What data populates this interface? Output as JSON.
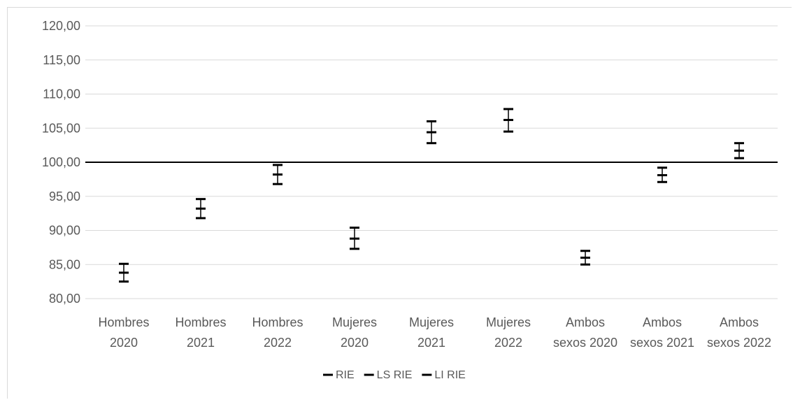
{
  "chart_data": {
    "type": "error-bar",
    "categories": [
      [
        "Hombres",
        "2020"
      ],
      [
        "Hombres",
        "2021"
      ],
      [
        "Hombres",
        "2022"
      ],
      [
        "Mujeres",
        "2020"
      ],
      [
        "Mujeres",
        "2021"
      ],
      [
        "Mujeres",
        "2022"
      ],
      [
        "Ambos",
        "sexos 2020"
      ],
      [
        "Ambos",
        "sexos 2021"
      ],
      [
        "Ambos",
        "sexos 2022"
      ]
    ],
    "series": [
      {
        "name": "RIE",
        "values": [
          83.8,
          93.2,
          98.2,
          88.8,
          104.4,
          106.2,
          86.0,
          98.1,
          101.7
        ]
      },
      {
        "name": "LS RIE",
        "values": [
          85.1,
          94.6,
          99.6,
          90.4,
          106.0,
          107.8,
          87.0,
          99.2,
          102.8
        ]
      },
      {
        "name": "LI RIE",
        "values": [
          82.5,
          91.8,
          96.8,
          87.3,
          102.8,
          104.5,
          85.0,
          97.1,
          100.6
        ]
      }
    ],
    "reference_line": 100,
    "ylim": [
      80,
      120
    ],
    "yticks": [
      "80,00",
      "85,00",
      "90,00",
      "95,00",
      "100,00",
      "105,00",
      "110,00",
      "115,00",
      "120,00"
    ],
    "grid": true,
    "legend_position": "bottom",
    "colors": {
      "grid": "#d9d9d9",
      "axis_text": "#595959",
      "marks": "#000000",
      "reference": "#000000"
    }
  }
}
